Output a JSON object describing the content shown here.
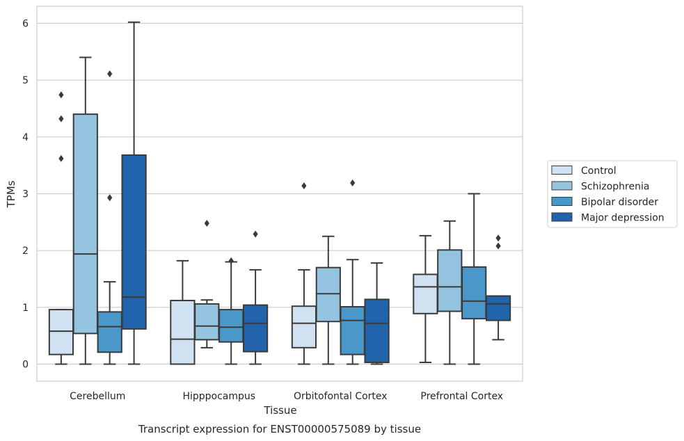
{
  "chart_data": {
    "type": "boxplot",
    "caption": "Transcript expression for ENST00000575089 by tissue",
    "xlabel": "Tissue",
    "ylabel": "TPMs",
    "ylim": [
      -0.3,
      6.3
    ],
    "yticks": [
      0,
      1,
      2,
      3,
      4,
      5,
      6
    ],
    "grid": "horizontal",
    "legend_position": "right",
    "categories": [
      "Cerebellum",
      "Hipppocampus",
      "Orbitofontal Cortex",
      "Prefrontal Cortex"
    ],
    "series": [
      {
        "name": "Control",
        "color": "#d0e1f2",
        "boxes": [
          {
            "whisker_low": 0,
            "q1": 0.17,
            "median": 0.58,
            "q3": 0.96,
            "whisker_high": 0.96,
            "fliers": [
              3.62,
              4.32,
              4.74
            ]
          },
          {
            "whisker_low": 0,
            "q1": 0,
            "median": 0.44,
            "q3": 1.12,
            "whisker_high": 1.82,
            "fliers": []
          },
          {
            "whisker_low": 0,
            "q1": 0.29,
            "median": 0.72,
            "q3": 1.02,
            "whisker_high": 1.66,
            "fliers": [
              3.14
            ]
          },
          {
            "whisker_low": 0.03,
            "q1": 0.89,
            "median": 1.36,
            "q3": 1.58,
            "whisker_high": 2.26,
            "fliers": []
          }
        ]
      },
      {
        "name": "Schizophrenia",
        "color": "#94c4df",
        "boxes": [
          {
            "whisker_low": 0,
            "q1": 0.54,
            "median": 1.94,
            "q3": 4.4,
            "whisker_high": 5.4,
            "fliers": []
          },
          {
            "whisker_low": 0.29,
            "q1": 0.43,
            "median": 0.67,
            "q3": 1.06,
            "whisker_high": 1.13,
            "fliers": [
              2.48
            ]
          },
          {
            "whisker_low": 0,
            "q1": 0.75,
            "median": 1.24,
            "q3": 1.7,
            "whisker_high": 2.25,
            "fliers": []
          },
          {
            "whisker_low": 0,
            "q1": 0.93,
            "median": 1.36,
            "q3": 2.01,
            "whisker_high": 2.52,
            "fliers": []
          }
        ]
      },
      {
        "name": "Bipolar disorder",
        "color": "#4a98c9",
        "boxes": [
          {
            "whisker_low": 0,
            "q1": 0.21,
            "median": 0.66,
            "q3": 0.92,
            "whisker_high": 1.45,
            "fliers": [
              2.93,
              5.11
            ]
          },
          {
            "whisker_low": 0,
            "q1": 0.39,
            "median": 0.65,
            "q3": 0.96,
            "whisker_high": 1.8,
            "fliers": [
              1.82
            ]
          },
          {
            "whisker_low": 0,
            "q1": 0.17,
            "median": 0.77,
            "q3": 1.01,
            "whisker_high": 1.84,
            "fliers": [
              3.19
            ]
          },
          {
            "whisker_low": 0,
            "q1": 0.8,
            "median": 1.11,
            "q3": 1.71,
            "whisker_high": 3.0,
            "fliers": []
          }
        ]
      },
      {
        "name": "Major depression",
        "color": "#2164ab",
        "boxes": [
          {
            "whisker_low": 0,
            "q1": 0.62,
            "median": 1.18,
            "q3": 3.68,
            "whisker_high": 6.02,
            "fliers": []
          },
          {
            "whisker_low": 0,
            "q1": 0.22,
            "median": 0.72,
            "q3": 1.04,
            "whisker_high": 1.66,
            "fliers": [
              2.29
            ]
          },
          {
            "whisker_low": 0,
            "q1": 0.03,
            "median": 0.72,
            "q3": 1.14,
            "whisker_high": 1.78,
            "fliers": []
          },
          {
            "whisker_low": 0.43,
            "q1": 0.77,
            "median": 1.06,
            "q3": 1.2,
            "whisker_high": 1.2,
            "fliers": [
              2.08,
              2.22
            ]
          }
        ]
      }
    ]
  }
}
